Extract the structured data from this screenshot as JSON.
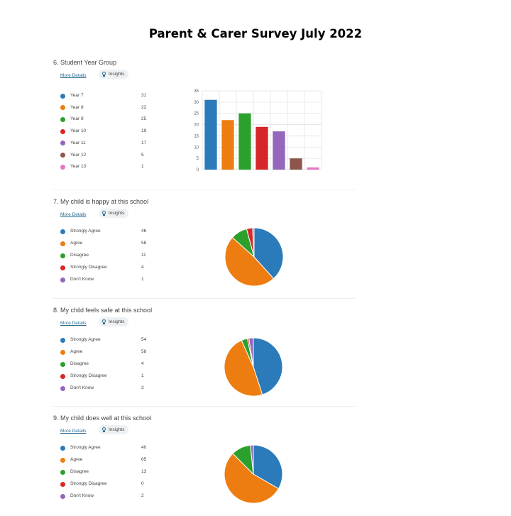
{
  "page_title": "Parent & Carer Survey July 2022",
  "more_details": "More Details",
  "insights": "Insights",
  "colors": [
    "#2b7bba",
    "#ed7d10",
    "#2ca02c",
    "#d62728",
    "#9467bd",
    "#8c564b",
    "#e377c2"
  ],
  "chart_data": [
    {
      "type": "bar",
      "title": "6. Student Year Group",
      "categories": [
        "Year 7",
        "Year 8",
        "Year 9",
        "Year 10",
        "Year 11",
        "Year 12",
        "Year 13"
      ],
      "values": [
        31,
        22,
        25,
        19,
        17,
        5,
        1
      ],
      "yticks": [
        "0",
        "5",
        "10",
        "15",
        "20",
        "25",
        "30",
        "35"
      ],
      "ylim": [
        0,
        35
      ],
      "grid": true
    },
    {
      "type": "pie",
      "title": "7. My child is happy at this school",
      "categories": [
        "Strongly Agree",
        "Agree",
        "Disagree",
        "Strongly Disagree",
        "Don't Know"
      ],
      "values": [
        46,
        58,
        11,
        4,
        1
      ]
    },
    {
      "type": "pie",
      "title": "8. My child feels safe at this school",
      "categories": [
        "Strongly Agree",
        "Agree",
        "Disagree",
        "Strongly Disagree",
        "Don't Know"
      ],
      "values": [
        54,
        58,
        4,
        1,
        3
      ]
    },
    {
      "type": "pie",
      "title": "9. My child does well at this school",
      "categories": [
        "Strongly Agree",
        "Agree",
        "Disagree",
        "Strongly Disagree",
        "Don't Know"
      ],
      "values": [
        40,
        65,
        13,
        0,
        2
      ]
    }
  ]
}
